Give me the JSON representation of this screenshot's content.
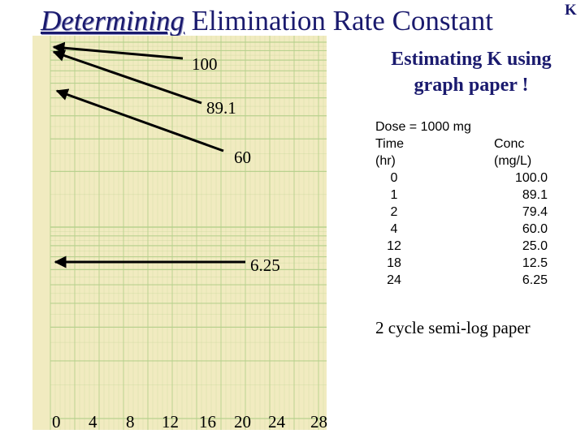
{
  "title": {
    "emphasis": "Determining",
    "rest": " Elimination Rate Constant"
  },
  "corner_label": "K",
  "subtitle": {
    "line1": "Estimating K using",
    "line2": "graph paper !"
  },
  "graph": {
    "labels": [
      "100",
      "89.1",
      "60",
      "6.25"
    ],
    "x_axis": [
      "0",
      "4",
      "8",
      "12",
      "16",
      "20",
      "24",
      "28"
    ],
    "paper_color": "#f1ebc0",
    "grid_color": "#b5d08c"
  },
  "table": {
    "dose": "Dose = 1000 mg",
    "headers": {
      "time": [
        "Time",
        "(hr)"
      ],
      "conc": [
        "Conc",
        "(mg/L)"
      ]
    },
    "rows": [
      [
        "0",
        "100.0"
      ],
      [
        "1",
        "89.1"
      ],
      [
        "2",
        "79.4"
      ],
      [
        "4",
        "60.0"
      ],
      [
        "12",
        "25.0"
      ],
      [
        "18",
        "12.5"
      ],
      [
        "24",
        "6.25"
      ]
    ]
  },
  "note": "2 cycle semi-log paper",
  "colors": {
    "heading": "#1a1a6e",
    "text": "#000000"
  }
}
